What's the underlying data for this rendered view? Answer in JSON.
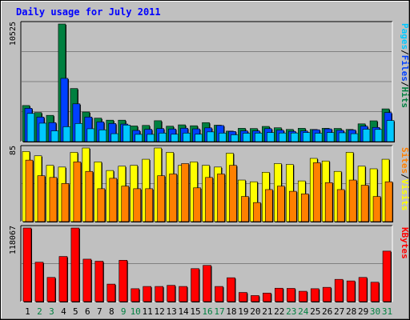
{
  "chart_data": {
    "type": "bar",
    "title": "Daily usage for July 2011",
    "categories": [
      "1",
      "2",
      "3",
      "4",
      "5",
      "6",
      "7",
      "8",
      "9",
      "10",
      "11",
      "12",
      "13",
      "14",
      "15",
      "16",
      "17",
      "18",
      "19",
      "20",
      "21",
      "22",
      "23",
      "24",
      "25",
      "26",
      "27",
      "28",
      "29",
      "30",
      "31"
    ],
    "weekend_categories": [
      "2",
      "3",
      "9",
      "10",
      "16",
      "17",
      "23",
      "24",
      "30",
      "31"
    ],
    "panels": [
      {
        "id": "hits",
        "max_label": "10525",
        "ylim": [
          0,
          10525
        ],
        "series_labels": [
          "Pages",
          "Files",
          "Hits"
        ],
        "series": [
          {
            "name": "Hits",
            "color": "#008040",
            "values": [
              3230,
              2600,
              2350,
              10525,
              4750,
              2650,
              2100,
              1920,
              1920,
              1400,
              1450,
              1870,
              1380,
              1500,
              1420,
              1700,
              1470,
              940,
              1190,
              1170,
              1360,
              1240,
              1090,
              1190,
              1090,
              1190,
              1180,
              1090,
              1590,
              1860,
              2930
            ]
          },
          {
            "name": "Files",
            "color": "#0040ff",
            "values": [
              2980,
              2200,
              1700,
              5660,
              3380,
              2200,
              1760,
              1620,
              1570,
              1000,
              1100,
              1170,
              1130,
              1200,
              1140,
              1230,
              1440,
              910,
              960,
              960,
              1160,
              1020,
              920,
              950,
              1060,
              1140,
              1010,
              1040,
              1380,
              1270,
              2600
            ]
          },
          {
            "name": "Pages",
            "color": "#00c8ff",
            "values": [
              2520,
              1650,
              960,
              1330,
              1620,
              1150,
              1050,
              710,
              1480,
              650,
              650,
              760,
              660,
              760,
              660,
              870,
              760,
              610,
              750,
              760,
              810,
              770,
              770,
              810,
              750,
              810,
              790,
              710,
              1110,
              1090,
              1890
            ]
          }
        ]
      },
      {
        "id": "visits",
        "max_label": "85",
        "ylim": [
          0,
          85
        ],
        "series_labels": [
          "Sites",
          "Visits"
        ],
        "series": [
          {
            "name": "Visits",
            "color": "#ffff00",
            "values": [
              81,
              76,
              65,
              63,
              80,
              85,
              69,
              59,
              64,
              65,
              72,
              85,
              80,
              65,
              69,
              65,
              63,
              79,
              48,
              46,
              57,
              67,
              66,
              47,
              73,
              70,
              58,
              80,
              64,
              61,
              72
            ]
          },
          {
            "name": "Sites",
            "color": "#ff8000",
            "values": [
              71,
              53,
              51,
              44,
              69,
              58,
              38,
              50,
              41,
              38,
              38,
              53,
              55,
              67,
              39,
              51,
              55,
              65,
              29,
              22,
              37,
              41,
              35,
              32,
              68,
              45,
              37,
              48,
              42,
              29,
              46
            ]
          }
        ]
      },
      {
        "id": "kbytes",
        "max_label": "118067",
        "ylim": [
          0,
          118067
        ],
        "series_labels": [
          "KBytes"
        ],
        "series": [
          {
            "name": "KBytes",
            "color": "#ff0000",
            "values": [
              118067,
              63200,
              38800,
              72400,
              118067,
              68100,
              64800,
              28100,
              66300,
              20700,
              24300,
              24300,
              26100,
              24300,
              52900,
              58100,
              24300,
              38300,
              14700,
              9700,
              13700,
              21500,
              21200,
              16600,
              20700,
              22900,
              35700,
              33200,
              38800,
              31100,
              81000
            ]
          }
        ]
      }
    ]
  }
}
